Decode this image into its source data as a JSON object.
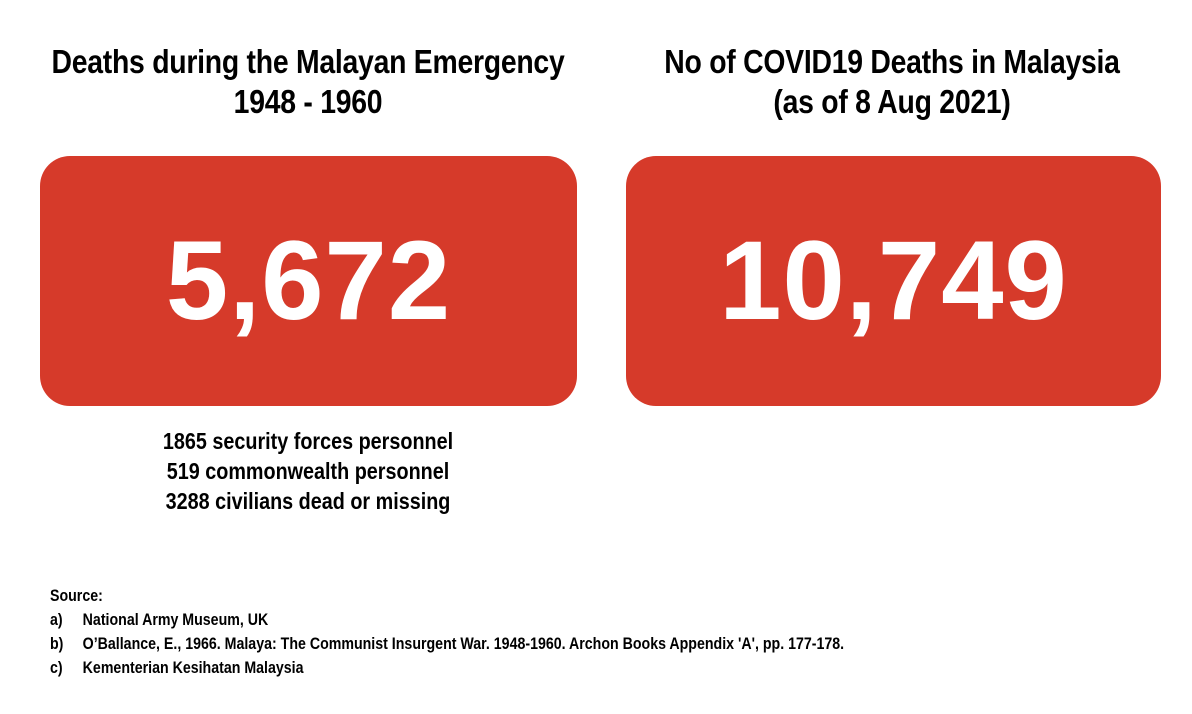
{
  "left_panel": {
    "title_line1": "Deaths during the Malayan Emergency",
    "title_line2": "1948 - 1960",
    "value": "5,672",
    "box_color": "#d63a2a",
    "breakdown": [
      "1865 security forces personnel",
      "519 commonwealth personnel",
      "3288 civilians dead or missing"
    ]
  },
  "right_panel": {
    "title_line1": "No of COVID19 Deaths in Malaysia",
    "title_line2": "(as of 8 Aug 2021)",
    "value": "10,749",
    "box_color": "#d63a2a"
  },
  "sources": {
    "heading": "Source:",
    "items": [
      {
        "letter": "a)",
        "text": "National Army Museum, UK"
      },
      {
        "letter": "b)",
        "text": "O’Ballance, E., 1966. Malaya: The Communist Insurgent War. 1948-1960. Archon Books Appendix 'A', pp. 177-178."
      },
      {
        "letter": "c)",
        "text": "Kementerian Kesihatan Malaysia"
      }
    ]
  }
}
